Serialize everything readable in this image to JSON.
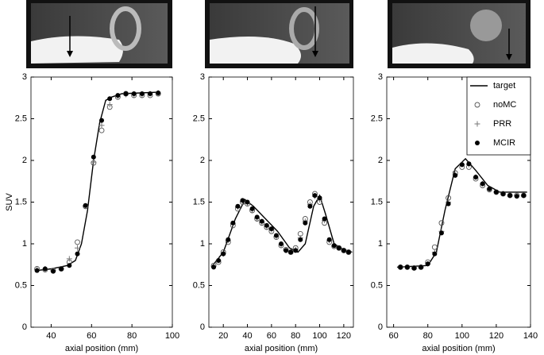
{
  "chart_data": [
    {
      "type": "scatter",
      "x_label": "axial position (mm)",
      "y_label": "SUV",
      "xlim": [
        30,
        100
      ],
      "xticks": [
        40,
        60,
        80,
        100
      ],
      "ylim": [
        0,
        3
      ],
      "yticks": [
        0,
        0.5,
        1,
        1.5,
        2,
        2.5,
        3
      ],
      "series": [
        {
          "marker": "line",
          "color": "#000000",
          "x": [
            33,
            40,
            48,
            52,
            55,
            58,
            61,
            64,
            67,
            70,
            75,
            94
          ],
          "values": [
            0.68,
            0.7,
            0.74,
            0.8,
            1.0,
            1.4,
            2.0,
            2.45,
            2.72,
            2.76,
            2.8,
            2.82
          ]
        },
        {
          "marker": "open-circle",
          "color": "#555555",
          "x": [
            33,
            37,
            41,
            45,
            49,
            53,
            57,
            61,
            65,
            69,
            73,
            77,
            81,
            85,
            89,
            93
          ],
          "values": [
            0.7,
            0.69,
            0.68,
            0.7,
            0.78,
            1.02,
            1.45,
            1.97,
            2.36,
            2.64,
            2.76,
            2.8,
            2.78,
            2.78,
            2.78,
            2.8
          ]
        },
        {
          "marker": "plus",
          "color": "#777777",
          "x": [
            33,
            37,
            41,
            45,
            49,
            53,
            57,
            61,
            65,
            69,
            73,
            77,
            81,
            85,
            89,
            93
          ],
          "values": [
            0.69,
            0.7,
            0.68,
            0.7,
            0.82,
            0.95,
            1.45,
            1.98,
            2.42,
            2.67,
            2.77,
            2.79,
            2.79,
            2.79,
            2.8,
            2.81
          ]
        },
        {
          "marker": "filled-circle",
          "color": "#000000",
          "x": [
            33,
            37,
            41,
            45,
            49,
            53,
            57,
            61,
            65,
            69,
            73,
            77,
            81,
            85,
            89,
            93
          ],
          "values": [
            0.68,
            0.7,
            0.67,
            0.7,
            0.74,
            0.88,
            1.46,
            2.04,
            2.48,
            2.74,
            2.78,
            2.8,
            2.8,
            2.8,
            2.8,
            2.81
          ]
        }
      ]
    },
    {
      "type": "scatter",
      "x_label": "axial position (mm)",
      "xlim": [
        8,
        128
      ],
      "xticks": [
        20,
        40,
        60,
        80,
        100,
        120
      ],
      "ylim": [
        0,
        3
      ],
      "yticks": [
        0,
        0.5,
        1,
        1.5,
        2,
        2.5,
        3
      ],
      "series": [
        {
          "marker": "line",
          "color": "#000000",
          "x": [
            10,
            20,
            30,
            38,
            45,
            55,
            65,
            75,
            82,
            88,
            95,
            100,
            105,
            112,
            120,
            127
          ],
          "values": [
            0.72,
            0.9,
            1.3,
            1.53,
            1.45,
            1.3,
            1.15,
            0.95,
            0.9,
            1.0,
            1.45,
            1.58,
            1.35,
            1.0,
            0.93,
            0.9
          ]
        },
        {
          "marker": "open-circle",
          "color": "#555555",
          "x": [
            12,
            16,
            20,
            24,
            28,
            32,
            36,
            40,
            44,
            48,
            52,
            56,
            60,
            64,
            68,
            72,
            76,
            80,
            84,
            88,
            92,
            96,
            100,
            104,
            108,
            112,
            116,
            120,
            124
          ],
          "values": [
            0.74,
            0.78,
            0.9,
            1.02,
            1.22,
            1.42,
            1.5,
            1.48,
            1.4,
            1.3,
            1.25,
            1.2,
            1.15,
            1.08,
            0.98,
            0.93,
            0.9,
            0.95,
            1.12,
            1.3,
            1.5,
            1.6,
            1.5,
            1.25,
            1.02,
            0.97,
            0.95,
            0.92,
            0.9
          ]
        },
        {
          "marker": "plus",
          "color": "#777777",
          "x": [
            12,
            16,
            20,
            24,
            28,
            32,
            36,
            40,
            44,
            48,
            52,
            56,
            60,
            64,
            68,
            72,
            76,
            80,
            84,
            88,
            92,
            96,
            100,
            104,
            108,
            112,
            116,
            120,
            124
          ],
          "values": [
            0.73,
            0.8,
            0.88,
            1.04,
            1.24,
            1.44,
            1.51,
            1.49,
            1.41,
            1.31,
            1.26,
            1.21,
            1.17,
            1.09,
            0.99,
            0.92,
            0.9,
            0.93,
            1.07,
            1.27,
            1.47,
            1.57,
            1.53,
            1.28,
            1.04,
            0.98,
            0.95,
            0.92,
            0.9
          ]
        },
        {
          "marker": "filled-circle",
          "color": "#000000",
          "x": [
            12,
            16,
            20,
            24,
            28,
            32,
            36,
            40,
            44,
            48,
            52,
            56,
            60,
            64,
            68,
            72,
            76,
            80,
            84,
            88,
            92,
            96,
            100,
            104,
            108,
            112,
            116,
            120,
            124
          ],
          "values": [
            0.72,
            0.8,
            0.88,
            1.05,
            1.25,
            1.45,
            1.52,
            1.5,
            1.42,
            1.32,
            1.27,
            1.22,
            1.18,
            1.1,
            1.0,
            0.92,
            0.9,
            0.92,
            1.05,
            1.25,
            1.45,
            1.58,
            1.55,
            1.3,
            1.05,
            0.98,
            0.95,
            0.92,
            0.9
          ]
        }
      ]
    },
    {
      "type": "scatter",
      "x_label": "axial position (mm)",
      "legend": "upper right",
      "xlim": [
        56,
        140
      ],
      "xticks": [
        60,
        80,
        100,
        120,
        140
      ],
      "ylim": [
        0,
        3
      ],
      "yticks": [
        0,
        0.5,
        1,
        1.5,
        2,
        2.5,
        3
      ],
      "series": [
        {
          "name": "target",
          "marker": "line",
          "color": "#000000",
          "x": [
            62,
            80,
            85,
            90,
            96,
            102,
            108,
            115,
            122,
            138
          ],
          "values": [
            0.72,
            0.74,
            0.9,
            1.4,
            1.9,
            2.02,
            1.88,
            1.7,
            1.62,
            1.62
          ]
        },
        {
          "name": "noMC",
          "marker": "open-circle",
          "color": "#555555",
          "x": [
            64,
            68,
            72,
            76,
            80,
            84,
            88,
            92,
            96,
            100,
            104,
            108,
            112,
            116,
            120,
            124,
            128,
            132,
            136
          ],
          "values": [
            0.72,
            0.72,
            0.71,
            0.72,
            0.78,
            0.96,
            1.25,
            1.55,
            1.85,
            1.92,
            1.92,
            1.78,
            1.7,
            1.65,
            1.62,
            1.6,
            1.58,
            1.58,
            1.58
          ]
        },
        {
          "name": "PRR",
          "marker": "plus",
          "color": "#777777",
          "x": [
            64,
            68,
            72,
            76,
            80,
            84,
            88,
            92,
            96,
            100,
            104,
            108,
            112,
            116,
            120,
            124,
            128,
            132,
            136
          ],
          "values": [
            0.72,
            0.72,
            0.71,
            0.72,
            0.76,
            0.9,
            1.15,
            1.5,
            1.83,
            1.95,
            1.95,
            1.8,
            1.72,
            1.66,
            1.62,
            1.6,
            1.58,
            1.58,
            1.58
          ]
        },
        {
          "name": "MCIR",
          "marker": "filled-circle",
          "color": "#000000",
          "x": [
            64,
            68,
            72,
            76,
            80,
            84,
            88,
            92,
            96,
            100,
            104,
            108,
            112,
            116,
            120,
            124,
            128,
            132,
            136
          ],
          "values": [
            0.72,
            0.72,
            0.71,
            0.72,
            0.76,
            0.88,
            1.13,
            1.48,
            1.82,
            1.95,
            1.96,
            1.8,
            1.72,
            1.66,
            1.62,
            1.6,
            1.58,
            1.57,
            1.58
          ]
        }
      ]
    }
  ]
}
